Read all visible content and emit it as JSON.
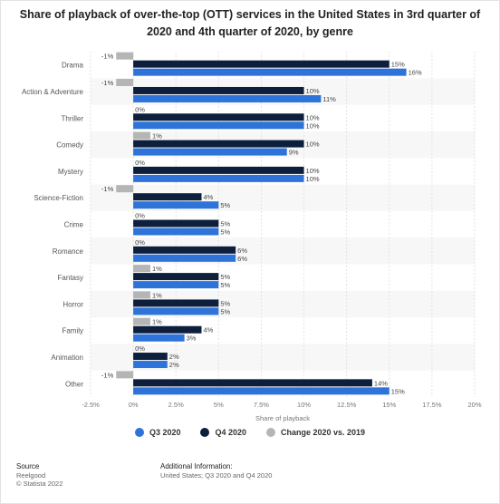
{
  "page": {
    "title": "Share of playback of over-the-top (OTT) services in the United States in 3rd quarter of 2020 and 4th quarter of 2020, by genre"
  },
  "chart_data": {
    "type": "bar",
    "orientation": "horizontal",
    "title": "Share of playback of over-the-top (OTT) services in the United States in 3rd quarter of 2020 and 4th quarter of 2020, by genre",
    "xlabel": "Share of playback",
    "ylabel": "",
    "xlim": [
      -2.5,
      20
    ],
    "xticks": [
      "-2.5%",
      "0%",
      "2.5%",
      "5%",
      "7.5%",
      "10%",
      "12.5%",
      "15%",
      "17.5%",
      "20%"
    ],
    "xtick_values": [
      -2.5,
      0,
      2.5,
      5,
      7.5,
      10,
      12.5,
      15,
      17.5,
      20
    ],
    "categories": [
      "Drama",
      "Action & Adventure",
      "Thriller",
      "Comedy",
      "Mystery",
      "Science-Fiction",
      "Crime",
      "Romance",
      "Fantasy",
      "Horror",
      "Family",
      "Animation",
      "Other"
    ],
    "series": [
      {
        "name": "Change 2020 vs. 2019",
        "color": "#b5b5b5",
        "values": [
          -1,
          -1,
          0,
          1,
          0,
          -1,
          0,
          0,
          1,
          1,
          1,
          0,
          -1
        ]
      },
      {
        "name": "Q4 2020",
        "color": "#0d1f3c",
        "values": [
          15,
          10,
          10,
          10,
          10,
          4,
          5,
          6,
          5,
          5,
          4,
          2,
          14
        ]
      },
      {
        "name": "Q3 2020",
        "color": "#2e73d9",
        "values": [
          16,
          11,
          10,
          9,
          10,
          5,
          5,
          6,
          5,
          5,
          3,
          2,
          15
        ]
      }
    ],
    "legend": {
      "position": "bottom",
      "order": [
        "Q3 2020",
        "Q4 2020",
        "Change 2020 vs. 2019"
      ]
    },
    "grid": true
  },
  "legend": {
    "items": [
      {
        "label": "Q3 2020",
        "color": "#2e73d9"
      },
      {
        "label": "Q4 2020",
        "color": "#0d1f3c"
      },
      {
        "label": "Change 2020 vs. 2019",
        "color": "#b5b5b5"
      }
    ]
  },
  "footer": {
    "source_header": "Source",
    "source_line1": "Reelgood",
    "source_line2": "© Statista 2022",
    "info_header": "Additional Information:",
    "info_line1": "United States; Q3 2020 and Q4 2020"
  }
}
